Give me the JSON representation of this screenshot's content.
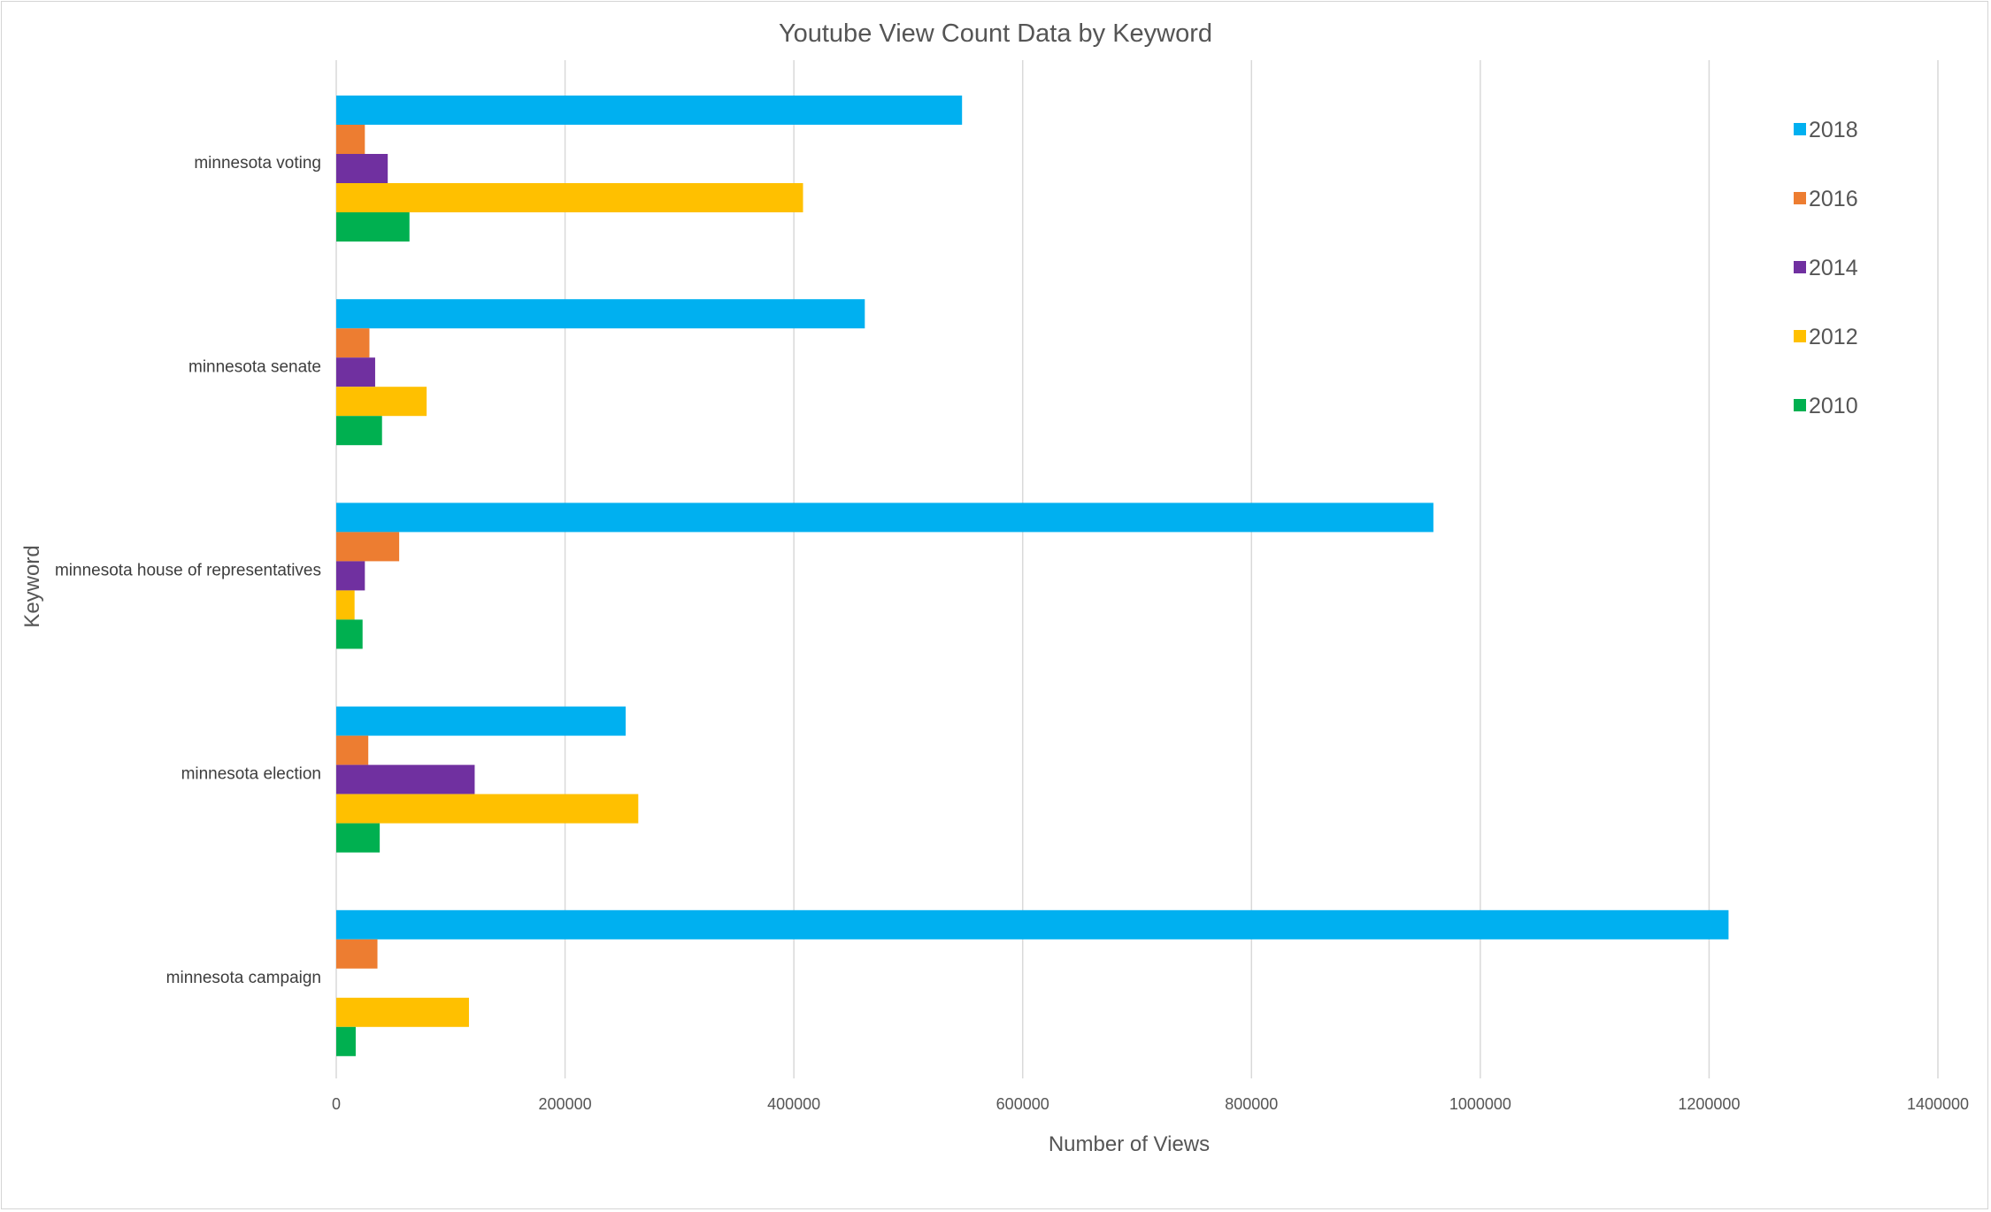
{
  "chart_data": {
    "type": "bar",
    "orientation": "horizontal",
    "title": "Youtube View Count Data by Keyword",
    "xlabel": "Number of Views",
    "ylabel": "Keyword",
    "xlim": [
      0,
      1400000
    ],
    "xticks": [
      "0",
      "200000",
      "400000",
      "600000",
      "800000",
      "1000000",
      "1200000",
      "1400000"
    ],
    "grid": "vertical",
    "legend_position": "right",
    "categories": [
      "minnesota voting",
      "minnesota senate",
      "minnesota house of representatives",
      "minnesota election",
      "minnesota campaign"
    ],
    "series": [
      {
        "name": "2018",
        "color": "#00b0f0",
        "values": [
          547000,
          462000,
          959000,
          253000,
          1217000
        ]
      },
      {
        "name": "2016",
        "color": "#ed7d31",
        "values": [
          25000,
          29000,
          55000,
          28000,
          36000
        ]
      },
      {
        "name": "2014",
        "color": "#7030a0",
        "values": [
          45000,
          34000,
          25000,
          121000,
          0
        ]
      },
      {
        "name": "2012",
        "color": "#ffc000",
        "values": [
          408000,
          79000,
          16000,
          264000,
          116000
        ]
      },
      {
        "name": "2010",
        "color": "#00b050",
        "values": [
          64000,
          40000,
          23000,
          38000,
          17000
        ]
      }
    ]
  }
}
